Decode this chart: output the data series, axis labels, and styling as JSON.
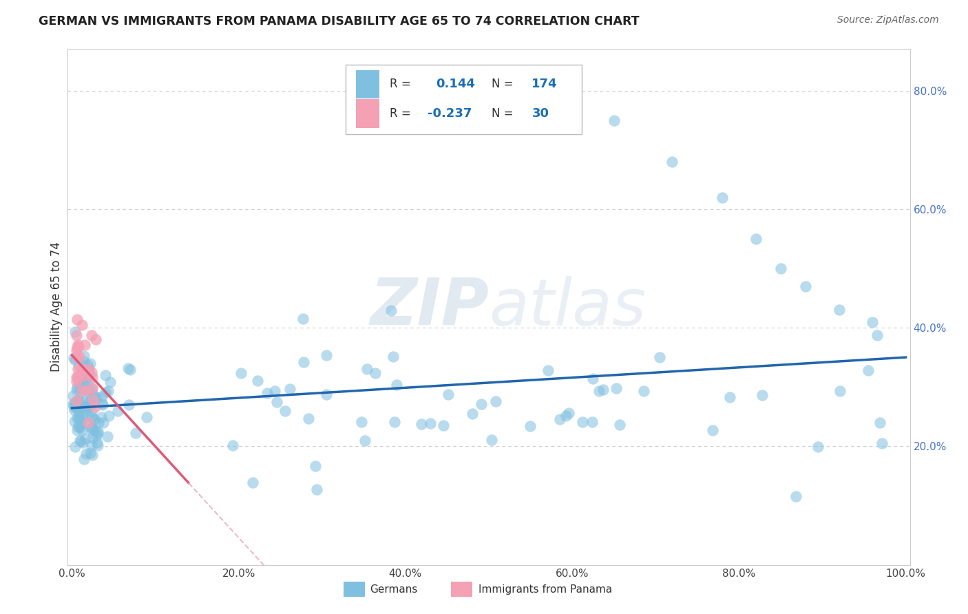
{
  "title": "GERMAN VS IMMIGRANTS FROM PANAMA DISABILITY AGE 65 TO 74 CORRELATION CHART",
  "source": "Source: ZipAtlas.com",
  "ylabel": "Disability Age 65 to 74",
  "R_german": 0.144,
  "N_german": 174,
  "R_panama": -0.237,
  "N_panama": 30,
  "blue_color": "#7fbfdf",
  "pink_color": "#f4a0b5",
  "blue_line_color": "#2166ac",
  "pink_line_color": "#e05878",
  "pink_dashed_color": "#f0b8c8",
  "watermark_zip": "ZIP",
  "watermark_atlas": "atlas",
  "xlim": [
    0.0,
    1.0
  ],
  "ylim": [
    0.0,
    0.85
  ],
  "xticks": [
    0.0,
    0.2,
    0.4,
    0.6,
    0.8,
    1.0
  ],
  "xtick_labels": [
    "0.0%",
    "20.0%",
    "40.0%",
    "60.0%",
    "80.0%",
    "100.0%"
  ],
  "yticks": [
    0.2,
    0.4,
    0.6,
    0.8
  ],
  "ytick_labels": [
    "20.0%",
    "40.0%",
    "60.0%",
    "80.0%"
  ],
  "grid_color": "#cccccc",
  "spine_color": "#cccccc"
}
